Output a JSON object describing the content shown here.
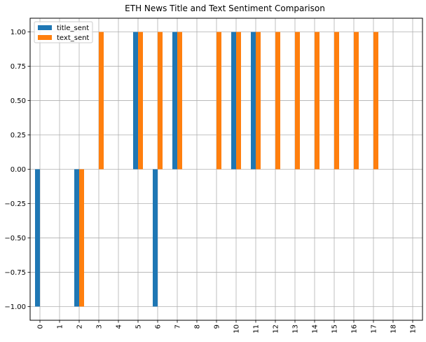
{
  "chart_data": {
    "type": "bar",
    "title": "ETH News Title and Text Sentiment Comparison",
    "xlabel": "",
    "ylabel": "",
    "categories": [
      "0",
      "1",
      "2",
      "3",
      "4",
      "5",
      "6",
      "7",
      "8",
      "9",
      "10",
      "11",
      "12",
      "13",
      "14",
      "15",
      "16",
      "17",
      "18",
      "19"
    ],
    "series": [
      {
        "name": "title_sent",
        "color": "#1f77b4",
        "values": [
          -1,
          0,
          -1,
          0,
          0,
          1,
          -1,
          1,
          0,
          0,
          1,
          1,
          0,
          0,
          0,
          0,
          0,
          0,
          0,
          0
        ]
      },
      {
        "name": "text_sent",
        "color": "#ff7f0e",
        "values": [
          0,
          0,
          -1,
          1,
          0,
          1,
          1,
          1,
          0,
          1,
          1,
          1,
          1,
          1,
          1,
          1,
          1,
          1,
          0,
          0
        ]
      }
    ],
    "ylim": [
      -1.1,
      1.1
    ],
    "yticks": [
      -1.0,
      -0.75,
      -0.5,
      -0.25,
      0.0,
      0.25,
      0.5,
      0.75,
      1.0
    ],
    "ytick_labels": [
      "−1.00",
      "−0.75",
      "−0.50",
      "−0.25",
      "0.00",
      "0.25",
      "0.50",
      "0.75",
      "1.00"
    ],
    "grid": true,
    "legend_position": "top-left",
    "xtick_rotation": "vertical"
  }
}
